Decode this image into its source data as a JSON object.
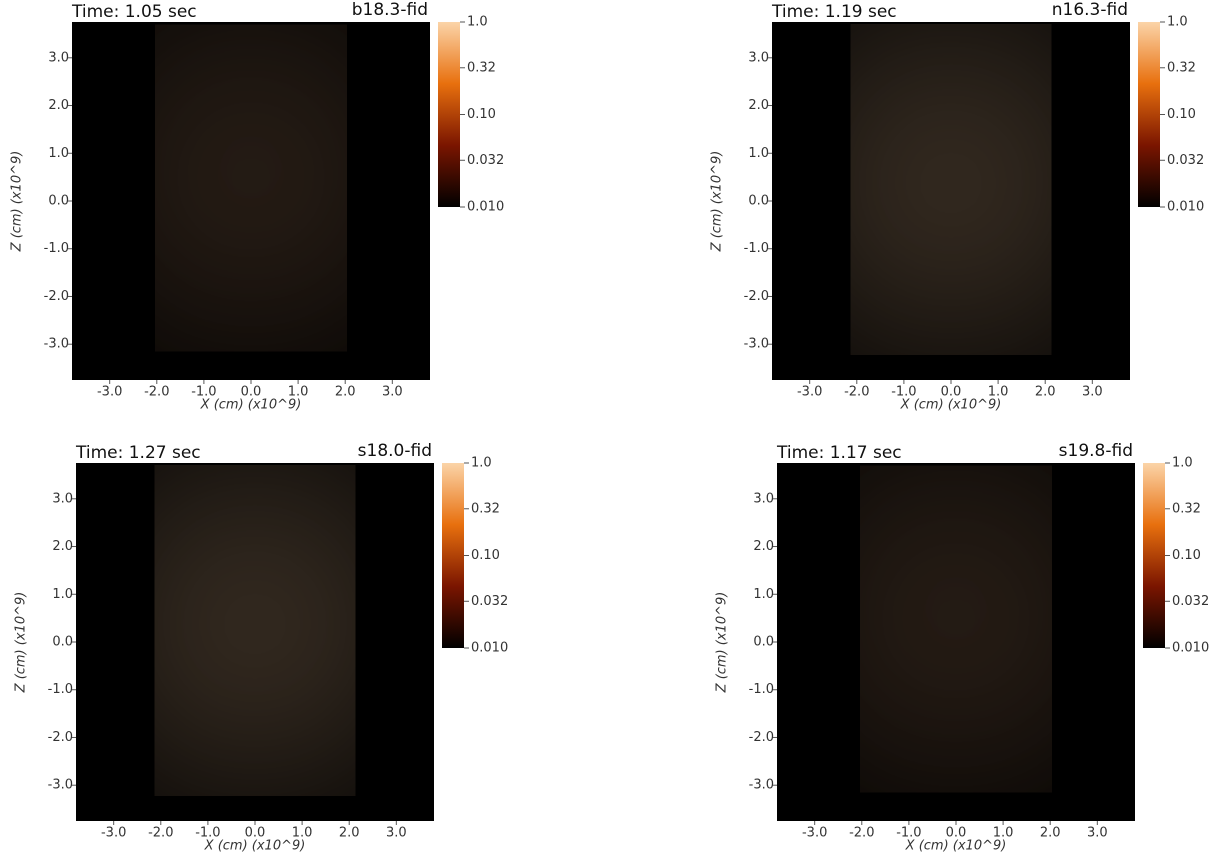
{
  "chart_data": [
    {
      "type": "image",
      "title": "b18.3-fid",
      "time_label": "Time: 1.05 sec",
      "xlabel": "X (cm) (x10^9)",
      "ylabel": "Z (cm) (x10^9)",
      "xlim": [
        -3.8,
        3.8
      ],
      "ylim": [
        -3.75,
        3.75
      ],
      "xticks": [
        {
          "value": -3,
          "label": "-3.0"
        },
        {
          "value": -2,
          "label": "-2.0"
        },
        {
          "value": -1,
          "label": "-1.0"
        },
        {
          "value": 0,
          "label": "0.0"
        },
        {
          "value": 1,
          "label": "1.0"
        },
        {
          "value": 2,
          "label": "2.0"
        },
        {
          "value": 3,
          "label": "3.0"
        }
      ],
      "yticks": [
        {
          "value": 3,
          "label": "3.0"
        },
        {
          "value": 2,
          "label": "2.0"
        },
        {
          "value": 1,
          "label": "1.0"
        },
        {
          "value": 0,
          "label": "0.0"
        },
        {
          "value": -1,
          "label": "-1.0"
        },
        {
          "value": -2,
          "label": "-2.0"
        },
        {
          "value": -3,
          "label": "-3.0"
        }
      ],
      "clim": [
        0.01,
        1
      ],
      "clog": true,
      "colormap": [
        "#000000",
        "#7a1500",
        "#e8700e",
        "#fbd4a8"
      ],
      "cticks": [
        {
          "value": 1,
          "label": "1.0"
        },
        0.32,
        {
          "value": 0.1,
          "label": "0.10"
        },
        0.032,
        {
          "value": 0.01,
          "label": "0.010"
        }
      ]
    },
    {
      "type": "image",
      "title": "n16.3-fid",
      "time_label": "Time: 1.19 sec",
      "xlabel": "X (cm) (x10^9)",
      "ylabel": "Z (cm) (x10^9)",
      "xlim": [
        -3.8,
        3.8
      ],
      "ylim": [
        -3.75,
        3.75
      ],
      "xticks": [
        {
          "value": -3,
          "label": "-3.0"
        },
        {
          "value": -2,
          "label": "-2.0"
        },
        {
          "value": -1,
          "label": "-1.0"
        },
        {
          "value": 0,
          "label": "0.0"
        },
        {
          "value": 1,
          "label": "1.0"
        },
        {
          "value": 2,
          "label": "2.0"
        },
        {
          "value": 3,
          "label": "3.0"
        }
      ],
      "yticks": [
        {
          "value": 3,
          "label": "3.0"
        },
        {
          "value": 2,
          "label": "2.0"
        },
        {
          "value": 1,
          "label": "1.0"
        },
        {
          "value": 0,
          "label": "0.0"
        },
        {
          "value": -1,
          "label": "-1.0"
        },
        {
          "value": -2,
          "label": "-2.0"
        },
        {
          "value": -3,
          "label": "-3.0"
        }
      ],
      "clim": [
        0.01,
        1
      ],
      "clog": true,
      "colormap": [
        "#000000",
        "#7a1500",
        "#e8700e",
        "#fbd4a8"
      ],
      "cticks": [
        {
          "value": 1,
          "label": "1.0"
        },
        0.32,
        {
          "value": 0.1,
          "label": "0.10"
        },
        0.032,
        {
          "value": 0.01,
          "label": "0.010"
        }
      ]
    },
    {
      "type": "image",
      "title": "s18.0-fid",
      "time_label": "Time: 1.27 sec",
      "xlabel": "X (cm) (x10^9)",
      "ylabel": "Z (cm) (x10^9)",
      "xlim": [
        -3.8,
        3.8
      ],
      "ylim": [
        -3.75,
        3.75
      ],
      "xticks": [
        {
          "value": -3,
          "label": "-3.0"
        },
        {
          "value": -2,
          "label": "-2.0"
        },
        {
          "value": -1,
          "label": "-1.0"
        },
        {
          "value": 0,
          "label": "0.0"
        },
        {
          "value": 1,
          "label": "1.0"
        },
        {
          "value": 2,
          "label": "2.0"
        },
        {
          "value": 3,
          "label": "3.0"
        }
      ],
      "yticks": [
        {
          "value": 3,
          "label": "3.0"
        },
        {
          "value": 2,
          "label": "2.0"
        },
        {
          "value": 1,
          "label": "1.0"
        },
        {
          "value": 0,
          "label": "0.0"
        },
        {
          "value": -1,
          "label": "-1.0"
        },
        {
          "value": -2,
          "label": "-2.0"
        },
        {
          "value": -3,
          "label": "-3.0"
        }
      ],
      "clim": [
        0.01,
        1
      ],
      "clog": true,
      "colormap": [
        "#000000",
        "#7a1500",
        "#e8700e",
        "#fbd4a8"
      ],
      "cticks": [
        {
          "value": 1,
          "label": "1.0"
        },
        0.32,
        {
          "value": 0.1,
          "label": "0.10"
        },
        0.032,
        {
          "value": 0.01,
          "label": "0.010"
        }
      ]
    },
    {
      "type": "image",
      "title": "s19.8-fid",
      "time_label": "Time: 1.17 sec",
      "xlabel": "X (cm) (x10^9)",
      "ylabel": "Z (cm) (x10^9)",
      "xlim": [
        -3.8,
        3.8
      ],
      "ylim": [
        -3.75,
        3.75
      ],
      "xticks": [
        {
          "value": -3,
          "label": "-3.0"
        },
        {
          "value": -2,
          "label": "-2.0"
        },
        {
          "value": -1,
          "label": "-1.0"
        },
        {
          "value": 0,
          "label": "0.0"
        },
        {
          "value": 1,
          "label": "1.0"
        },
        {
          "value": 2,
          "label": "2.0"
        },
        {
          "value": 3,
          "label": "3.0"
        }
      ],
      "yticks": [
        {
          "value": 3,
          "label": "3.0"
        },
        {
          "value": 2,
          "label": "2.0"
        },
        {
          "value": 1,
          "label": "1.0"
        },
        {
          "value": 0,
          "label": "0.0"
        },
        {
          "value": -1,
          "label": "-1.0"
        },
        {
          "value": -2,
          "label": "-2.0"
        },
        {
          "value": -3,
          "label": "-3.0"
        }
      ],
      "clim": [
        0.01,
        1
      ],
      "clog": true,
      "colormap": [
        "#000000",
        "#7a1500",
        "#e8700e",
        "#fbd4a8"
      ],
      "cticks": [
        {
          "value": 1,
          "label": "1.0"
        },
        0.32,
        {
          "value": 0.1,
          "label": "0.10"
        },
        0.032,
        {
          "value": 0.01,
          "label": "0.010"
        }
      ]
    }
  ]
}
